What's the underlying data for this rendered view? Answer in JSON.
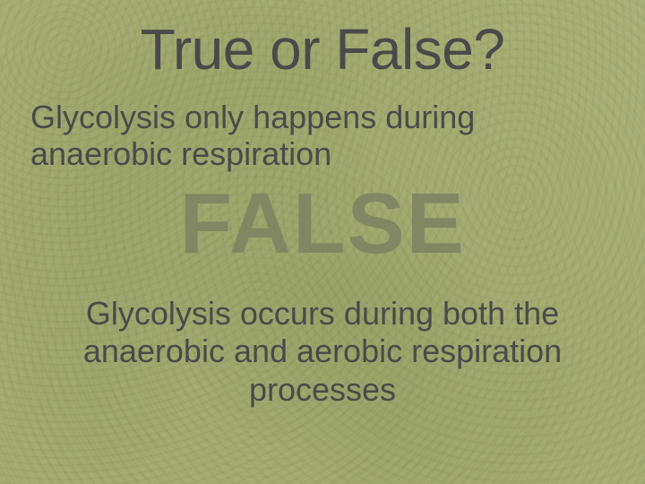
{
  "slide": {
    "title": "True or False?",
    "question": "Glycolysis only happens during anaerobic respiration",
    "answer": "FALSE",
    "explanation": "Glycolysis occurs during both the anaerobic and aerobic respiration processes"
  },
  "style": {
    "background_color": "#a8b07a",
    "text_color": "#4a4a4a",
    "answer_color": "#808762",
    "title_fontsize": 64,
    "question_fontsize": 36,
    "answer_fontsize": 96,
    "explanation_fontsize": 36,
    "font_family": "Arial, Helvetica, sans-serif"
  }
}
